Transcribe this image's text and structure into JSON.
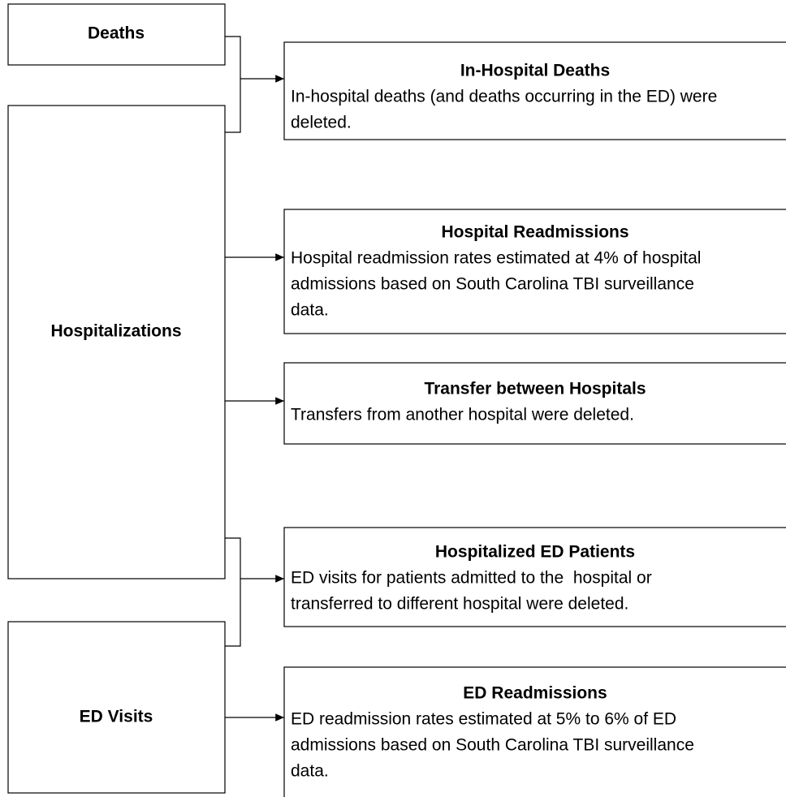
{
  "left_nodes": [
    {
      "label": "Deaths"
    },
    {
      "label": "Hospitalizations"
    },
    {
      "label": "ED Visits"
    }
  ],
  "right_nodes": [
    {
      "title": "In-Hospital Deaths",
      "lines": [
        "In-hospital deaths (and deaths occurring in the ED) were",
        "deleted."
      ]
    },
    {
      "title": "Hospital Readmissions",
      "lines": [
        "Hospital readmission rates estimated at 4% of hospital",
        "admissions based on South Carolina TBI surveillance",
        "data."
      ]
    },
    {
      "title": "Transfer between Hospitals",
      "lines": [
        "Transfers from another hospital were deleted."
      ]
    },
    {
      "title": "Hospitalized ED Patients",
      "lines": [
        "ED visits for patients admitted to the  hospital or",
        "transferred to different hospital were deleted."
      ]
    },
    {
      "title": "ED Readmissions",
      "lines": [
        "ED readmission rates estimated at 5% to 6% of ED",
        "admissions based on South Carolina TBI surveillance",
        "data."
      ]
    }
  ]
}
